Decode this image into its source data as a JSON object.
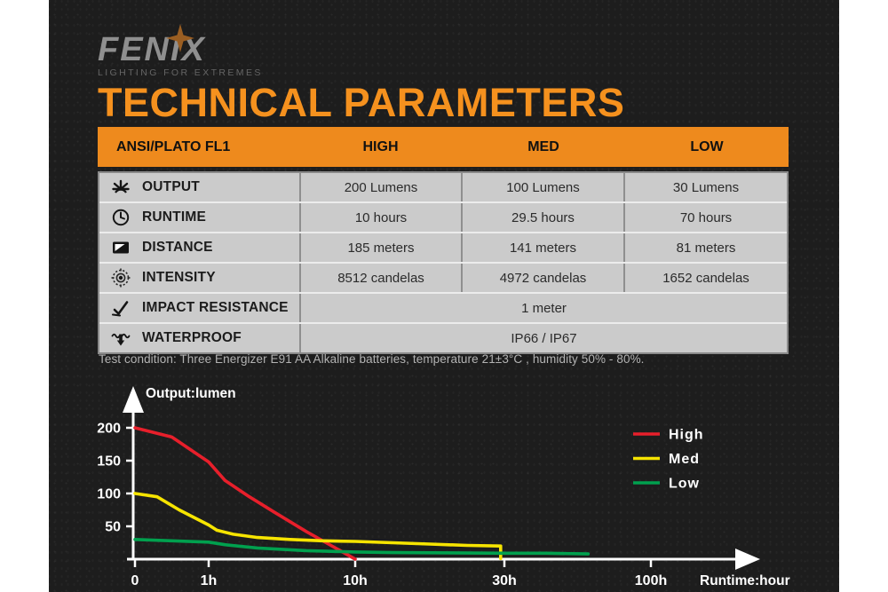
{
  "logo": {
    "brand": "FENIX",
    "tagline": "LIGHTING FOR EXTREMES"
  },
  "page_title": "TECHNICAL PARAMETERS",
  "colors": {
    "accent_orange": "#ee8a1d",
    "title_orange": "#f5911e",
    "table_row_bg": "#cbcbcb",
    "high_red": "#e71f2b",
    "med_yellow": "#f6e400",
    "low_green": "#00a04e"
  },
  "table": {
    "header": {
      "col0": "ANSI/PLATO FL1",
      "col1": "HIGH",
      "col2": "MED",
      "col3": "LOW"
    },
    "rows": [
      {
        "icon": "output-icon",
        "label": "OUTPUT",
        "values": [
          "200 Lumens",
          "100 Lumens",
          "30 Lumens"
        ]
      },
      {
        "icon": "runtime-icon",
        "label": "RUNTIME",
        "values": [
          "10 hours",
          "29.5 hours",
          "70 hours"
        ]
      },
      {
        "icon": "distance-icon",
        "label": "DISTANCE",
        "values": [
          "185 meters",
          "141 meters",
          "81 meters"
        ]
      },
      {
        "icon": "intensity-icon",
        "label": "INTENSITY",
        "values": [
          "8512 candelas",
          "4972 candelas",
          "1652 candelas"
        ]
      },
      {
        "icon": "impact-icon",
        "label": "IMPACT RESISTANCE",
        "values": [
          "1 meter"
        ],
        "span": true
      },
      {
        "icon": "waterproof-icon",
        "label": "WATERPROOF",
        "values": [
          "IP66 / IP67"
        ],
        "span": true
      }
    ]
  },
  "footnote": "Test condition: Three Energizer E91 AA Alkaline batteries, temperature 21±3°C , humidity 50% - 80%.",
  "chart_data": {
    "type": "line",
    "ylabel": "Output:lumen",
    "xlabel": "Runtime:hour",
    "x_axis": {
      "ticks": [
        "0",
        "1h",
        "10h",
        "30h",
        "100h"
      ],
      "hours": [
        0,
        1,
        10,
        30,
        100
      ]
    },
    "y_axis": {
      "ticks": [
        200,
        150,
        100,
        50
      ],
      "range": [
        0,
        210
      ]
    },
    "grid": false,
    "legend_position": "right",
    "legend": [
      "High",
      "Med",
      "Low"
    ],
    "series": [
      {
        "name": "High",
        "color": "#e71f2b",
        "points": [
          [
            0,
            200
          ],
          [
            0.5,
            186
          ],
          [
            1,
            148
          ],
          [
            2,
            120
          ],
          [
            3.5,
            95
          ],
          [
            5,
            72
          ],
          [
            7,
            42
          ],
          [
            9,
            14
          ],
          [
            10,
            0
          ]
        ]
      },
      {
        "name": "Med",
        "color": "#f6e400",
        "points": [
          [
            0,
            100
          ],
          [
            0.3,
            95
          ],
          [
            0.6,
            75
          ],
          [
            1,
            52
          ],
          [
            1.5,
            44
          ],
          [
            2.5,
            38
          ],
          [
            4,
            33
          ],
          [
            6,
            30
          ],
          [
            8,
            28
          ],
          [
            10,
            27
          ],
          [
            15,
            25
          ],
          [
            20,
            23
          ],
          [
            25,
            21
          ],
          [
            29.5,
            20
          ],
          [
            29.5,
            1
          ]
        ]
      },
      {
        "name": "Low",
        "color": "#00a04e",
        "points": [
          [
            0,
            30
          ],
          [
            1,
            26
          ],
          [
            2,
            22
          ],
          [
            4,
            17
          ],
          [
            7,
            13
          ],
          [
            10,
            11
          ],
          [
            15,
            10
          ],
          [
            30,
            9
          ],
          [
            50,
            9
          ],
          [
            70,
            8
          ]
        ]
      }
    ]
  }
}
